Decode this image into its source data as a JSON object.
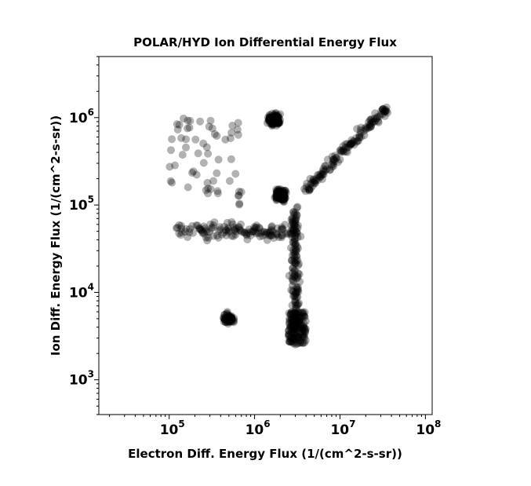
{
  "chart_data": {
    "type": "scatter",
    "title": "POLAR/HYD  Ion Differential Energy Flux",
    "xlabel": "Electron Diff. Energy Flux (1/(cm^2-s-sr))",
    "ylabel": "Ion Diff. Energy Flux (1/(cm^2-s-sr))",
    "xscale": "log",
    "yscale": "log",
    "xlim": [
      15000,
      120000000
    ],
    "ylim": [
      400,
      5000000
    ],
    "xticks": [
      {
        "base": "10",
        "exp": "5"
      },
      {
        "base": "10",
        "exp": "6"
      },
      {
        "base": "10",
        "exp": "7"
      },
      {
        "base": "10",
        "exp": "8"
      }
    ],
    "yticks": [
      {
        "base": "10",
        "exp": "3"
      },
      {
        "base": "10",
        "exp": "4"
      },
      {
        "base": "10",
        "exp": "5"
      },
      {
        "base": "10",
        "exp": "6"
      }
    ],
    "marker_color": "#000000",
    "marker_alpha": 0.3,
    "grid": false,
    "clusters": [
      {
        "region": "horizontal band",
        "x_range": [
          120000,
          3000000
        ],
        "y_center": 50000,
        "density": "high"
      },
      {
        "region": "vertical band",
        "x_center": 3000000,
        "y_range": [
          4000,
          100000
        ],
        "density": "high"
      },
      {
        "region": "diagonal band",
        "x_range": [
          4000000,
          35000000
        ],
        "y_range": [
          150000,
          1300000
        ],
        "density": "high"
      },
      {
        "region": "upper-left scatter",
        "x_range": [
          100000,
          700000
        ],
        "y_range": [
          100000,
          1000000
        ],
        "density": "medium"
      },
      {
        "region": "top group",
        "x_center": 1700000,
        "y_center": 950000,
        "density": "high"
      },
      {
        "region": "central blob",
        "x_center": 2000000,
        "y_center": 130000,
        "density": "high"
      },
      {
        "region": "lower-left group",
        "x_center": 500000,
        "y_center": 5000,
        "density": "medium"
      },
      {
        "region": "bottom group",
        "x_range": [
          2500000,
          4000000
        ],
        "y_range": [
          2500,
          6000
        ],
        "density": "high"
      }
    ]
  }
}
